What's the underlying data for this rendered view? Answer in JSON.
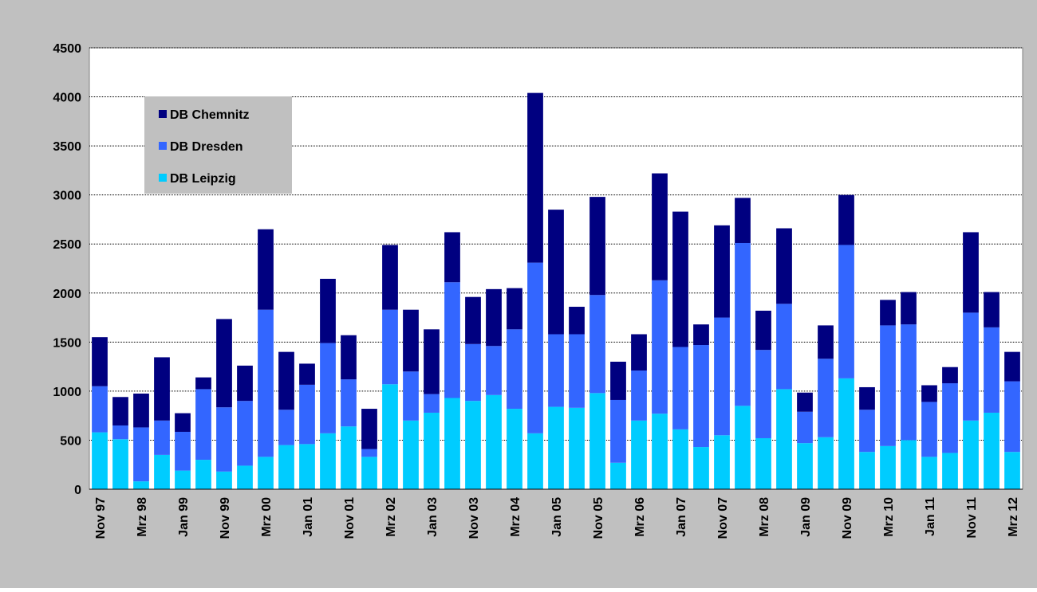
{
  "chart_data": {
    "type": "stacked_bar",
    "categories": [
      "Nov 97",
      null,
      "Mrz 98",
      null,
      "Jan 99",
      null,
      "Nov 99",
      null,
      "Mrz 00",
      null,
      "Jan 01",
      null,
      "Nov 01",
      null,
      "Mrz 02",
      null,
      "Jan 03",
      null,
      "Nov 03",
      null,
      "Mrz 04",
      null,
      "Jan 05",
      null,
      "Nov 05",
      null,
      "Mrz 06",
      null,
      "Jan 07",
      null,
      "Nov 07",
      null,
      "Mrz 08",
      null,
      "Jan 09",
      null,
      "Nov 09",
      null,
      "Mrz 10",
      null,
      "Jan 11",
      null,
      "Nov 11",
      null,
      "Mrz 12"
    ],
    "series": [
      {
        "name": "DB Leipzig",
        "color": "#00ccff",
        "values": [
          580,
          510,
          80,
          350,
          190,
          300,
          180,
          240,
          330,
          450,
          460,
          570,
          640,
          330,
          1070,
          700,
          780,
          930,
          900,
          960,
          820,
          570,
          840,
          830,
          980,
          270,
          700,
          770,
          610,
          430,
          550,
          850,
          520,
          1020,
          470,
          530,
          1130,
          380,
          440,
          500,
          330,
          370,
          700,
          780,
          380
        ]
      },
      {
        "name": "DB Dresden",
        "color": "#3366ff",
        "values": [
          470,
          140,
          550,
          350,
          395,
          720,
          655,
          660,
          1500,
          360,
          605,
          920,
          480,
          80,
          760,
          500,
          190,
          1180,
          580,
          500,
          810,
          1740,
          740,
          750,
          1000,
          640,
          510,
          1360,
          840,
          1040,
          1200,
          1660,
          900,
          870,
          320,
          800,
          1360,
          430,
          1230,
          1180,
          560,
          710,
          1100,
          870,
          720
        ]
      },
      {
        "name": "DB Chemnitz",
        "color": "#000080",
        "values": [
          500,
          290,
          345,
          645,
          190,
          120,
          900,
          360,
          820,
          590,
          215,
          655,
          450,
          410,
          660,
          630,
          660,
          510,
          480,
          580,
          420,
          1730,
          1270,
          280,
          1000,
          390,
          370,
          1090,
          1380,
          210,
          940,
          460,
          400,
          770,
          195,
          340,
          510,
          230,
          260,
          330,
          170,
          165,
          820,
          360,
          300
        ]
      }
    ],
    "ylim": [
      0,
      4500
    ],
    "yticks": [
      0,
      500,
      1000,
      1500,
      2000,
      2500,
      3000,
      3500,
      4000,
      4500
    ],
    "grid": true,
    "legend": "upper left"
  }
}
